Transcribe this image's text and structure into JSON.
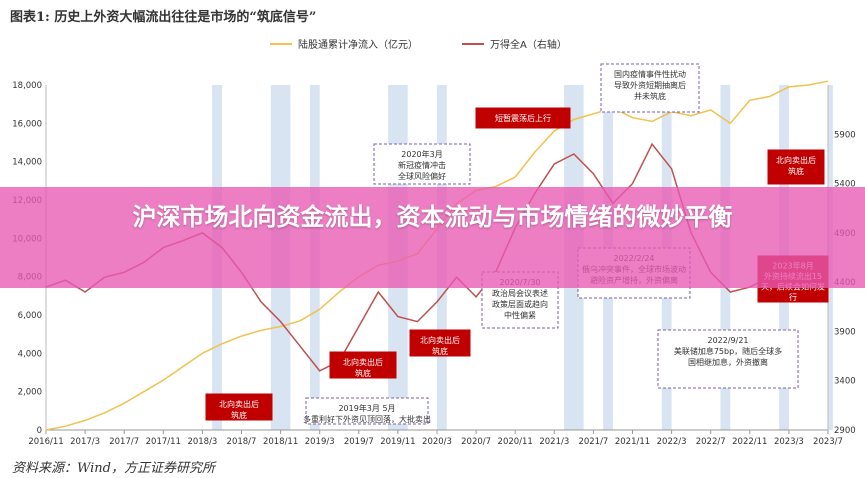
{
  "header": {
    "title": "图表1: 历史上外资大幅流出往往是市场的“筑底信号”"
  },
  "banner": {
    "text": "沪深市场北向资金流出，资本流动与市场情绪的微妙平衡"
  },
  "footer": {
    "source": "资料来源：Wind，方正证券研究所"
  },
  "colors": {
    "line_inflow": "#f2c14e",
    "line_index": "#c0504d",
    "shade": "#b8cde6",
    "box_red": "#c00000",
    "box_dashed": "#7f5fa8",
    "banner": "#e85ab4"
  },
  "chart_data": {
    "type": "line",
    "x_ticks": [
      "2016/11",
      "2017/3",
      "2017/7",
      "2017/11",
      "2018/3",
      "2018/7",
      "2018/11",
      "2019/3",
      "2019/7",
      "2019/11",
      "2020/3",
      "2020/7",
      "2020/11",
      "2021/3",
      "2021/7",
      "2021/11",
      "2022/3",
      "2022/7",
      "2022/11",
      "2023/3",
      "2023/7"
    ],
    "y_left_ticks": [
      0,
      2000,
      4000,
      6000,
      8000,
      10000,
      12000,
      14000,
      16000,
      18000
    ],
    "y_left_range": [
      0,
      18000
    ],
    "y_right_ticks": [
      2900,
      3400,
      3900,
      4400,
      4900,
      5400,
      5900
    ],
    "y_right_range": [
      2900,
      6400
    ],
    "legend_position": "top",
    "series": [
      {
        "name": "陆股通累计净流入（亿元）",
        "axis": "left",
        "x": [
          0,
          2,
          4,
          6,
          8,
          10,
          12,
          14,
          16,
          18,
          20,
          22,
          24,
          26,
          28,
          30,
          32,
          34,
          36,
          38,
          40,
          42,
          44,
          46,
          48,
          50,
          52,
          54,
          56,
          58,
          60,
          62,
          64,
          66,
          68,
          70,
          72,
          74,
          76,
          78,
          80
        ],
        "values": [
          0,
          200,
          500,
          900,
          1400,
          2000,
          2600,
          3300,
          4000,
          4500,
          4900,
          5200,
          5400,
          5700,
          6300,
          7200,
          8000,
          8600,
          8800,
          9200,
          10500,
          11800,
          12500,
          12700,
          13200,
          14500,
          15600,
          16200,
          16500,
          16800,
          16300,
          16100,
          16600,
          16400,
          16700,
          16000,
          17200,
          17400,
          17900,
          18000,
          18200
        ]
      },
      {
        "name": "万得全A（右轴）",
        "axis": "right",
        "x": [
          0,
          2,
          4,
          6,
          8,
          10,
          12,
          14,
          16,
          18,
          20,
          22,
          24,
          26,
          28,
          30,
          32,
          34,
          36,
          38,
          40,
          42,
          44,
          46,
          48,
          50,
          52,
          54,
          56,
          58,
          60,
          62,
          64,
          66,
          68,
          70,
          72,
          74,
          76,
          78,
          80
        ],
        "values": [
          4350,
          4420,
          4300,
          4450,
          4500,
          4600,
          4750,
          4820,
          4900,
          4750,
          4500,
          4200,
          4000,
          3750,
          3500,
          3600,
          3950,
          4300,
          4050,
          4000,
          4200,
          4450,
          4250,
          4500,
          4950,
          5300,
          5600,
          5700,
          5500,
          5200,
          5400,
          5800,
          5550,
          4900,
          4500,
          4300,
          4350,
          4450,
          4600,
          4400,
          4600
        ]
      }
    ],
    "shaded_x_ranges": [
      [
        17,
        18
      ],
      [
        23,
        25
      ],
      [
        27,
        28
      ],
      [
        35,
        37
      ],
      [
        40,
        41
      ],
      [
        53,
        55
      ],
      [
        57,
        58
      ],
      [
        63,
        64
      ],
      [
        69,
        70
      ],
      [
        75,
        76
      ],
      [
        80,
        80.5
      ]
    ],
    "annotations": [
      {
        "style": "red",
        "lines": [
          "北向卖出后",
          "筑底"
        ]
      },
      {
        "style": "red",
        "lines": [
          "北向卖出后",
          "筑底"
        ]
      },
      {
        "style": "red",
        "lines": [
          "北向卖出后",
          "筑底"
        ]
      },
      {
        "style": "red",
        "lines": [
          "短暂震荡后上行"
        ]
      },
      {
        "style": "red",
        "lines": [
          "北向卖出后",
          "筑底"
        ]
      },
      {
        "style": "red",
        "lines": [
          "2023年8月",
          "外资持续流出15",
          "天，后续会如何发",
          "行"
        ]
      },
      {
        "style": "dashed",
        "lines": [
          "2020年3月",
          "新冠疫情冲击",
          "全球风险偏好"
        ]
      },
      {
        "style": "dashed",
        "lines": [
          "2019年3月 5月",
          "多重利好下外资见顶回落，大批卖出"
        ]
      },
      {
        "style": "dashed",
        "lines": [
          "2020/7/30",
          "政治局会议表述",
          "政策层面或趋向",
          "中性偏紧"
        ]
      },
      {
        "style": "dashed",
        "lines": [
          "2022/2/24",
          "俄乌冲突事件，全球市场波动",
          "避险资产增持，外资偏离"
        ]
      },
      {
        "style": "dashed",
        "lines": [
          "国内疫情事件性扰动",
          "导致外资短期抽离后",
          "并未筑底"
        ]
      },
      {
        "style": "dashed",
        "lines": [
          "2022/9/21",
          "美联储加息75bp，随后全球多",
          "国相继加息，外资撤离"
        ]
      }
    ]
  }
}
